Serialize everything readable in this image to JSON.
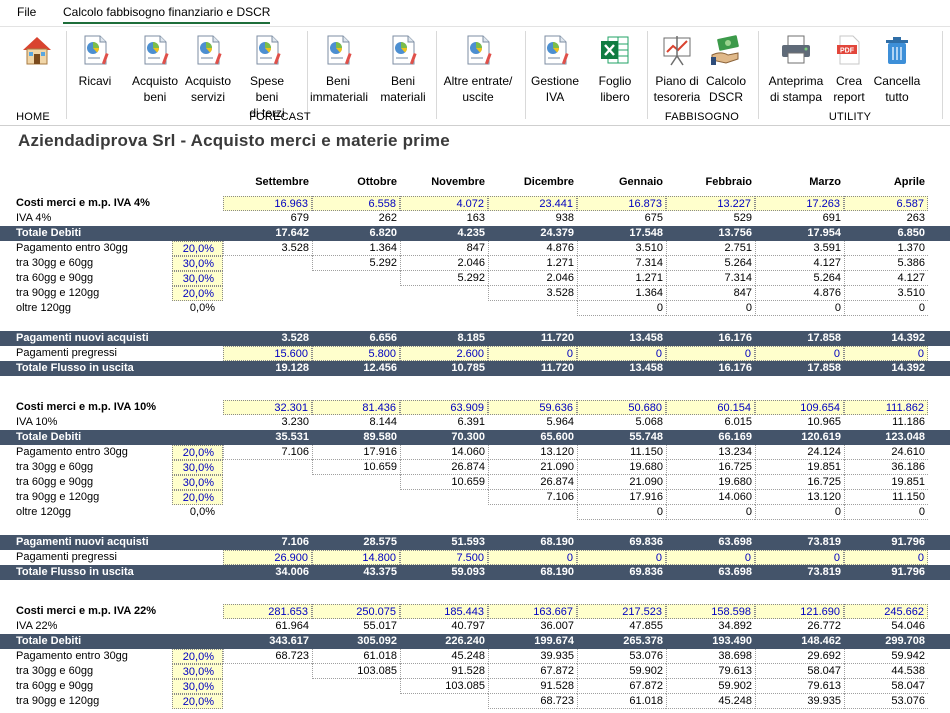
{
  "menu": {
    "file": "File",
    "tab": "Calcolo fabbisogno finanziario e DSCR"
  },
  "ribbon": {
    "buttons": [
      {
        "key": "home",
        "label": "",
        "icon": "house-icon"
      },
      {
        "key": "ricavi",
        "label": "Ricavi",
        "icon": "document-chart-icon"
      },
      {
        "key": "acquisto-beni",
        "label": "Acquisto\nbeni",
        "icon": "document-chart-icon"
      },
      {
        "key": "acquisto-servizi",
        "label": "Acquisto\nservizi",
        "icon": "document-chart-icon"
      },
      {
        "key": "spese-beni-terzi",
        "label": "Spese beni\ndi terzi",
        "icon": "document-chart-icon"
      },
      {
        "key": "beni-immateriali",
        "label": "Beni\nimmateriali",
        "icon": "document-chart-icon"
      },
      {
        "key": "beni-materiali",
        "label": "Beni\nmateriali",
        "icon": "document-chart-icon"
      },
      {
        "key": "altre-entrate",
        "label": "Altre entrate/\nuscite",
        "icon": "document-chart-icon"
      },
      {
        "key": "gestione-iva",
        "label": "Gestione\nIVA",
        "icon": "document-chart-icon"
      },
      {
        "key": "foglio-libero",
        "label": "Foglio\nlibero",
        "icon": "excel-icon"
      },
      {
        "key": "piano-tesoreria",
        "label": "Piano di\ntesoreria",
        "icon": "presentation-chart-icon"
      },
      {
        "key": "calcolo-dscr",
        "label": "Calcolo\nDSCR",
        "icon": "money-hand-icon"
      },
      {
        "key": "anteprima-stampa",
        "label": "Anteprima\ndi stampa",
        "icon": "printer-icon"
      },
      {
        "key": "crea-report",
        "label": "Crea\nreport",
        "icon": "pdf-icon"
      },
      {
        "key": "cancella-tutto",
        "label": "Cancella\ntutto",
        "icon": "trash-icon"
      }
    ],
    "groups": [
      "HOME",
      "FORECAST",
      "FABBISOGNO",
      "UTILITY"
    ]
  },
  "title": "Aziendadiprova Srl - Acquisto merci e materie prime",
  "months": [
    "Settembre",
    "Ottobre",
    "Novembre",
    "Dicembre",
    "Gennaio",
    "Febbraio",
    "Marzo",
    "Aprile"
  ],
  "sections": [
    {
      "costi_label": "Costi merci e m.p. IVA 4%",
      "costi": [
        "16.963",
        "6.558",
        "4.072",
        "23.441",
        "16.873",
        "13.227",
        "17.263",
        "6.587"
      ],
      "iva_label": "IVA 4%",
      "iva": [
        "679",
        "262",
        "163",
        "938",
        "675",
        "529",
        "691",
        "263"
      ],
      "tot_debiti_label": "Totale Debiti",
      "tot_debiti": [
        "17.642",
        "6.820",
        "4.235",
        "24.379",
        "17.548",
        "13.756",
        "17.954",
        "6.850"
      ],
      "pay": [
        {
          "label": "Pagamento entro 30gg",
          "pct": "20,0%",
          "values": [
            "3.528",
            "1.364",
            "847",
            "4.876",
            "3.510",
            "2.751",
            "3.591",
            "1.370"
          ]
        },
        {
          "label": "tra 30gg e 60gg",
          "pct": "30,0%",
          "values": [
            "",
            "5.292",
            "2.046",
            "1.271",
            "7.314",
            "5.264",
            "4.127",
            "5.386"
          ]
        },
        {
          "label": "tra 60gg e 90gg",
          "pct": "30,0%",
          "values": [
            "",
            "",
            "5.292",
            "2.046",
            "1.271",
            "7.314",
            "5.264",
            "4.127"
          ]
        },
        {
          "label": "tra 90gg e 120gg",
          "pct": "20,0%",
          "values": [
            "",
            "",
            "",
            "3.528",
            "1.364",
            "847",
            "4.876",
            "3.510"
          ]
        },
        {
          "label": "oltre 120gg",
          "pct": "0,0%",
          "values": [
            "",
            "",
            "",
            "",
            "0",
            "0",
            "0",
            "0"
          ]
        }
      ],
      "nuovi_label": "Pagamenti nuovi acquisti",
      "nuovi": [
        "3.528",
        "6.656",
        "8.185",
        "11.720",
        "13.458",
        "16.176",
        "17.858",
        "14.392"
      ],
      "pregressi_label": "Pagamenti pregressi",
      "pregressi": [
        "15.600",
        "5.800",
        "2.600",
        "0",
        "0",
        "0",
        "0",
        "0"
      ],
      "flusso_label": "Totale Flusso in uscita",
      "flusso": [
        "19.128",
        "12.456",
        "10.785",
        "11.720",
        "13.458",
        "16.176",
        "17.858",
        "14.392"
      ]
    },
    {
      "costi_label": "Costi merci e m.p. IVA 10%",
      "costi": [
        "32.301",
        "81.436",
        "63.909",
        "59.636",
        "50.680",
        "60.154",
        "109.654",
        "111.862"
      ],
      "iva_label": "IVA 10%",
      "iva": [
        "3.230",
        "8.144",
        "6.391",
        "5.964",
        "5.068",
        "6.015",
        "10.965",
        "11.186"
      ],
      "tot_debiti_label": "Totale Debiti",
      "tot_debiti": [
        "35.531",
        "89.580",
        "70.300",
        "65.600",
        "55.748",
        "66.169",
        "120.619",
        "123.048"
      ],
      "pay": [
        {
          "label": "Pagamento entro 30gg",
          "pct": "20,0%",
          "values": [
            "7.106",
            "17.916",
            "14.060",
            "13.120",
            "11.150",
            "13.234",
            "24.124",
            "24.610"
          ]
        },
        {
          "label": "tra 30gg e 60gg",
          "pct": "30,0%",
          "values": [
            "",
            "10.659",
            "26.874",
            "21.090",
            "19.680",
            "16.725",
            "19.851",
            "36.186"
          ]
        },
        {
          "label": "tra 60gg e 90gg",
          "pct": "30,0%",
          "values": [
            "",
            "",
            "10.659",
            "26.874",
            "21.090",
            "19.680",
            "16.725",
            "19.851"
          ]
        },
        {
          "label": "tra 90gg e 120gg",
          "pct": "20,0%",
          "values": [
            "",
            "",
            "",
            "7.106",
            "17.916",
            "14.060",
            "13.120",
            "11.150"
          ]
        },
        {
          "label": "oltre 120gg",
          "pct": "0,0%",
          "values": [
            "",
            "",
            "",
            "",
            "0",
            "0",
            "0",
            "0"
          ]
        }
      ],
      "nuovi_label": "Pagamenti nuovi acquisti",
      "nuovi": [
        "7.106",
        "28.575",
        "51.593",
        "68.190",
        "69.836",
        "63.698",
        "73.819",
        "91.796"
      ],
      "pregressi_label": "Pagamenti pregressi",
      "pregressi": [
        "26.900",
        "14.800",
        "7.500",
        "0",
        "0",
        "0",
        "0",
        "0"
      ],
      "flusso_label": "Totale Flusso in uscita",
      "flusso": [
        "34.006",
        "43.375",
        "59.093",
        "68.190",
        "69.836",
        "63.698",
        "73.819",
        "91.796"
      ]
    },
    {
      "costi_label": "Costi merci e m.p. IVA 22%",
      "costi": [
        "281.653",
        "250.075",
        "185.443",
        "163.667",
        "217.523",
        "158.598",
        "121.690",
        "245.662"
      ],
      "iva_label": "IVA 22%",
      "iva": [
        "61.964",
        "55.017",
        "40.797",
        "36.007",
        "47.855",
        "34.892",
        "26.772",
        "54.046"
      ],
      "tot_debiti_label": "Totale Debiti",
      "tot_debiti": [
        "343.617",
        "305.092",
        "226.240",
        "199.674",
        "265.378",
        "193.490",
        "148.462",
        "299.708"
      ],
      "pay": [
        {
          "label": "Pagamento entro 30gg",
          "pct": "20,0%",
          "values": [
            "68.723",
            "61.018",
            "45.248",
            "39.935",
            "53.076",
            "38.698",
            "29.692",
            "59.942"
          ]
        },
        {
          "label": "tra 30gg e 60gg",
          "pct": "30,0%",
          "values": [
            "",
            "103.085",
            "91.528",
            "67.872",
            "59.902",
            "79.613",
            "58.047",
            "44.538"
          ]
        },
        {
          "label": "tra 60gg e 90gg",
          "pct": "30,0%",
          "values": [
            "",
            "",
            "103.085",
            "91.528",
            "67.872",
            "59.902",
            "79.613",
            "58.047"
          ]
        },
        {
          "label": "tra 90gg e 120gg",
          "pct": "20,0%",
          "values": [
            "",
            "",
            "",
            "68.723",
            "61.018",
            "45.248",
            "39.935",
            "53.076"
          ]
        }
      ]
    }
  ]
}
